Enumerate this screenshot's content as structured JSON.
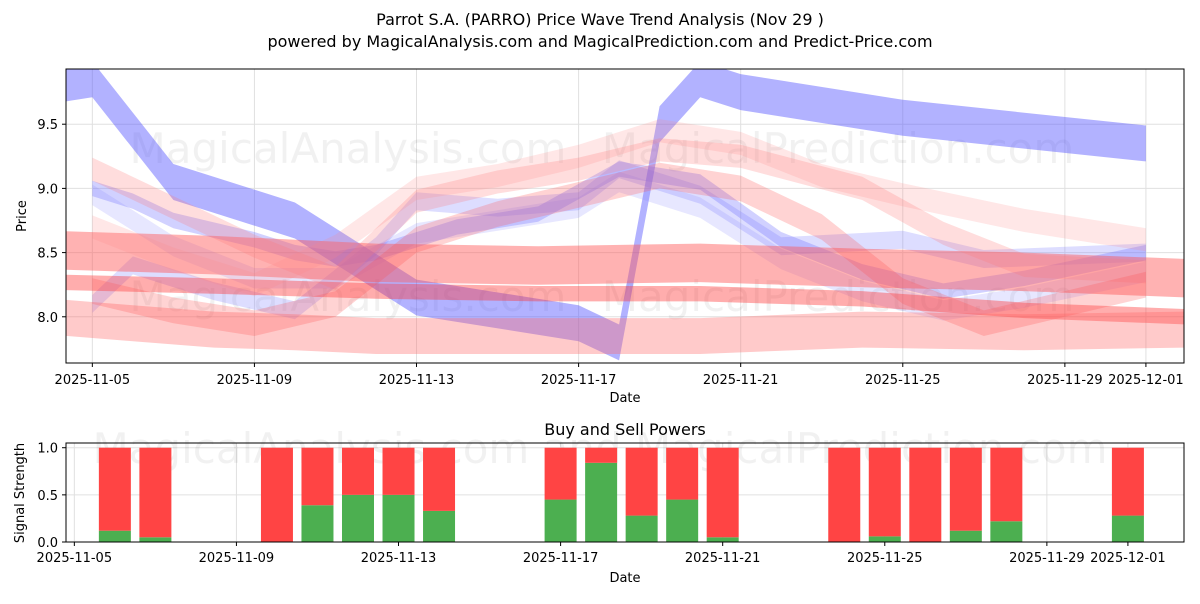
{
  "chart_data": [
    {
      "type": "area",
      "title": "Parrot S.A. (PARRO) Price Wave Trend Analysis (Nov 29 )",
      "subtitle": "powered by MagicalAnalysis.com and MagicalPrediction.com and Predict-Price.com",
      "xlabel": "Date",
      "ylabel": "Price",
      "xlim": [
        "2025-11-04",
        "2025-12-02"
      ],
      "ylim": [
        7.64,
        9.93
      ],
      "yticks": [
        8.0,
        8.5,
        9.0,
        9.5
      ],
      "ytick_labels": [
        "8.0",
        "8.5",
        "9.0",
        "9.5"
      ],
      "xticks": [
        "2025-11-05",
        "2025-11-09",
        "2025-11-13",
        "2025-11-17",
        "2025-11-21",
        "2025-11-25",
        "2025-11-29",
        "2025-12-01"
      ],
      "grid": true,
      "watermarks": [
        "MagicalAnalysis.com",
        "MagicalPrediction.com",
        "MagicalAnalysis.com",
        "MagicalPrediction.com"
      ],
      "series": [
        {
          "name": "blue-wave-1",
          "color": "#5555ff",
          "opacity": 0.45,
          "width": 0.28,
          "x": [
            "2025-11-04",
            "2025-11-05",
            "2025-11-07",
            "2025-11-10",
            "2025-11-13",
            "2025-11-17",
            "2025-11-18",
            "2025-11-19",
            "2025-11-20",
            "2025-11-21",
            "2025-11-25",
            "2025-11-28",
            "2025-12-01"
          ],
          "values": [
            9.8,
            9.85,
            9.05,
            8.75,
            8.15,
            7.95,
            7.8,
            9.5,
            9.85,
            9.75,
            9.55,
            9.45,
            9.35
          ]
        },
        {
          "name": "blue-wave-2",
          "color": "#6666ff",
          "opacity": 0.3,
          "width": 0.12,
          "x": [
            "2025-11-05",
            "2025-11-06",
            "2025-11-07",
            "2025-11-09",
            "2025-11-10",
            "2025-11-11",
            "2025-11-12",
            "2025-11-14",
            "2025-11-16",
            "2025-11-18",
            "2025-11-20",
            "2025-11-22",
            "2025-11-24",
            "2025-11-26",
            "2025-11-28",
            "2025-12-01"
          ],
          "values": [
            9.0,
            8.9,
            8.75,
            8.6,
            8.5,
            8.45,
            8.5,
            8.7,
            8.8,
            9.15,
            9.05,
            8.6,
            8.35,
            8.2,
            8.3,
            8.5
          ]
        },
        {
          "name": "blue-wave-3",
          "color": "#7777ff",
          "opacity": 0.25,
          "width": 0.14,
          "x": [
            "2025-11-05",
            "2025-11-06",
            "2025-11-08",
            "2025-11-10",
            "2025-11-12",
            "2025-11-13",
            "2025-11-15",
            "2025-11-17",
            "2025-11-18",
            "2025-11-20",
            "2025-11-22",
            "2025-11-25",
            "2025-11-27",
            "2025-12-01"
          ],
          "values": [
            8.1,
            8.4,
            8.2,
            8.05,
            8.55,
            8.9,
            8.85,
            8.9,
            9.15,
            8.95,
            8.55,
            8.6,
            8.45,
            8.5
          ]
        },
        {
          "name": "blue-wave-4",
          "color": "#8888ff",
          "opacity": 0.2,
          "width": 0.16,
          "x": [
            "2025-11-05",
            "2025-11-07",
            "2025-11-09",
            "2025-11-11",
            "2025-11-13",
            "2025-11-15",
            "2025-11-17",
            "2025-11-18",
            "2025-11-20",
            "2025-11-22",
            "2025-11-24",
            "2025-11-26",
            "2025-11-28",
            "2025-12-01"
          ],
          "values": [
            8.95,
            8.55,
            8.3,
            8.3,
            8.65,
            8.75,
            8.85,
            9.05,
            8.85,
            8.45,
            8.2,
            8.05,
            8.15,
            8.35
          ]
        },
        {
          "name": "red-wave-1",
          "color": "#ff3333",
          "opacity": 0.4,
          "width": 0.12,
          "x": [
            "2025-11-04",
            "2025-11-08",
            "2025-11-12",
            "2025-11-16",
            "2025-11-20",
            "2025-11-24",
            "2025-11-28",
            "2025-12-02"
          ],
          "values": [
            8.27,
            8.24,
            8.2,
            8.18,
            8.18,
            8.14,
            8.05,
            8.0
          ]
        },
        {
          "name": "red-wave-2",
          "color": "#ff5555",
          "opacity": 0.45,
          "width": 0.3,
          "x": [
            "2025-11-04",
            "2025-11-08",
            "2025-11-12",
            "2025-11-16",
            "2025-11-20",
            "2025-11-24",
            "2025-11-28",
            "2025-12-02"
          ],
          "values": [
            8.52,
            8.48,
            8.42,
            8.4,
            8.42,
            8.38,
            8.35,
            8.3
          ]
        },
        {
          "name": "red-wave-3",
          "color": "#ff6666",
          "opacity": 0.35,
          "width": 0.28,
          "x": [
            "2025-11-04",
            "2025-11-06",
            "2025-11-08",
            "2025-11-10",
            "2025-11-12",
            "2025-11-16",
            "2025-11-20",
            "2025-11-24",
            "2025-11-28",
            "2025-12-02"
          ],
          "values": [
            8.0,
            7.95,
            7.9,
            7.88,
            7.85,
            7.85,
            7.85,
            7.9,
            7.88,
            7.9
          ]
        },
        {
          "name": "red-wave-4",
          "color": "#ff7777",
          "opacity": 0.25,
          "width": 0.18,
          "x": [
            "2025-11-05",
            "2025-11-07",
            "2025-11-09",
            "2025-11-11",
            "2025-11-13",
            "2025-11-15",
            "2025-11-17",
            "2025-11-19",
            "2025-11-21",
            "2025-11-24",
            "2025-11-26",
            "2025-11-28",
            "2025-12-01"
          ],
          "values": [
            9.15,
            8.85,
            8.55,
            8.3,
            8.9,
            9.05,
            9.15,
            9.3,
            9.25,
            9.0,
            8.65,
            8.4,
            8.35
          ]
        },
        {
          "name": "red-wave-5",
          "color": "#ff8888",
          "opacity": 0.2,
          "width": 0.18,
          "x": [
            "2025-11-05",
            "2025-11-07",
            "2025-11-09",
            "2025-11-11",
            "2025-11-13",
            "2025-11-15",
            "2025-11-17",
            "2025-11-19",
            "2025-11-21",
            "2025-11-23",
            "2025-11-25",
            "2025-11-28",
            "2025-12-01"
          ],
          "values": [
            8.7,
            8.45,
            8.25,
            8.55,
            9.0,
            9.1,
            9.25,
            9.45,
            9.35,
            9.1,
            8.95,
            8.75,
            8.6
          ]
        },
        {
          "name": "red-wave-6",
          "color": "#ff5050",
          "opacity": 0.25,
          "width": 0.2,
          "x": [
            "2025-11-05",
            "2025-11-07",
            "2025-11-09",
            "2025-11-11",
            "2025-11-13",
            "2025-11-15",
            "2025-11-17",
            "2025-11-19",
            "2025-11-21",
            "2025-11-23",
            "2025-11-25",
            "2025-11-27",
            "2025-12-01"
          ],
          "values": [
            8.2,
            8.05,
            7.95,
            8.1,
            8.6,
            8.8,
            8.95,
            9.1,
            9.0,
            8.7,
            8.2,
            7.95,
            8.25
          ]
        }
      ]
    },
    {
      "type": "bar",
      "title": "Buy and Sell Powers",
      "xlabel": "Date",
      "ylabel": "Signal Strength",
      "xlim": [
        "2025-11-04",
        "2025-12-02"
      ],
      "ylim": [
        0,
        1.05
      ],
      "yticks": [
        0.0,
        0.5,
        1.0
      ],
      "ytick_labels": [
        "0.0",
        "0.5",
        "1.0"
      ],
      "xticks": [
        "2025-11-05",
        "2025-11-09",
        "2025-11-13",
        "2025-11-17",
        "2025-11-21",
        "2025-11-25",
        "2025-11-29",
        "2025-12-01"
      ],
      "grid": true,
      "watermark": "MagicalAnalysis.com and MagicalPrediction.com",
      "buy_color": "#4caf50",
      "sell_color": "#ff4444",
      "dates": [
        "2025-11-06",
        "2025-11-07",
        "2025-11-10",
        "2025-11-11",
        "2025-11-12",
        "2025-11-13",
        "2025-11-14",
        "2025-11-17",
        "2025-11-18",
        "2025-11-19",
        "2025-11-20",
        "2025-11-21",
        "2025-11-24",
        "2025-11-25",
        "2025-11-26",
        "2025-11-27",
        "2025-11-28",
        "2025-12-01"
      ],
      "buy": [
        0.12,
        0.05,
        0.0,
        0.39,
        0.5,
        0.5,
        0.33,
        0.45,
        0.84,
        0.28,
        0.45,
        0.05,
        0.0,
        0.06,
        0.0,
        0.12,
        0.22,
        0.28
      ],
      "sell": [
        0.88,
        0.95,
        1.0,
        0.61,
        0.5,
        0.5,
        0.67,
        0.55,
        0.16,
        0.72,
        0.55,
        0.95,
        1.0,
        0.94,
        1.0,
        0.88,
        0.78,
        0.72
      ]
    }
  ]
}
